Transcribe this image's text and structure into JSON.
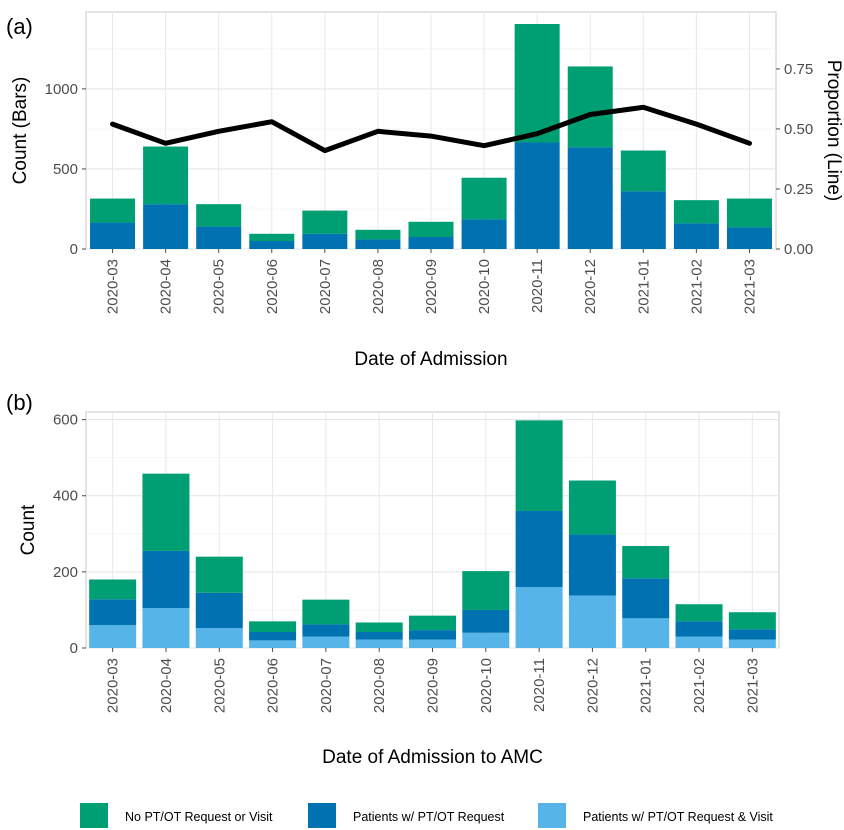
{
  "chart_data": [
    {
      "panel": "(a)",
      "type": "bar",
      "stacked": true,
      "categories": [
        "2020-03",
        "2020-04",
        "2020-05",
        "2020-06",
        "2020-07",
        "2020-08",
        "2020-09",
        "2020-10",
        "2020-11",
        "2020-12",
        "2021-01",
        "2021-02",
        "2021-03"
      ],
      "series": [
        {
          "name": "Patients w/ PT/OT Request",
          "color": "#0072B2",
          "values": [
            165,
            280,
            140,
            50,
            95,
            60,
            75,
            185,
            665,
            635,
            360,
            160,
            135
          ]
        },
        {
          "name": "No PT/OT Request or Visit",
          "color": "#009E73",
          "values": [
            150,
            360,
            140,
            45,
            145,
            60,
            95,
            260,
            740,
            505,
            255,
            145,
            180
          ]
        }
      ],
      "line": {
        "name": "Proportion",
        "color": "#000000",
        "values": [
          0.52,
          0.44,
          0.49,
          0.53,
          0.41,
          0.49,
          0.47,
          0.43,
          0.48,
          0.56,
          0.59,
          0.52,
          0.44
        ]
      },
      "xlabel": "Date of Admission",
      "ylabel": "Count (Bars)",
      "y2label": "Proportion (Line)",
      "ylim": [
        0,
        1480
      ],
      "yticks": [
        0,
        500,
        1000
      ],
      "y2lim": [
        0,
        0.987
      ],
      "y2ticks": [
        "0.00",
        "0.25",
        "0.50",
        "0.75"
      ],
      "grid": true
    },
    {
      "panel": "(b)",
      "type": "bar",
      "stacked": true,
      "categories": [
        "2020-03",
        "2020-04",
        "2020-05",
        "2020-06",
        "2020-07",
        "2020-08",
        "2020-09",
        "2020-10",
        "2020-11",
        "2020-12",
        "2021-01",
        "2021-02",
        "2021-03"
      ],
      "series": [
        {
          "name": "Patients w/ PT/OT Request & Visit",
          "color": "#56B4E9",
          "values": [
            60,
            105,
            52,
            20,
            30,
            22,
            22,
            40,
            160,
            138,
            78,
            30,
            22
          ]
        },
        {
          "name": "Patients w/ PT/OT Request",
          "color": "#0072B2",
          "values": [
            68,
            150,
            93,
            22,
            32,
            20,
            25,
            60,
            200,
            160,
            105,
            40,
            27
          ]
        },
        {
          "name": "No PT/OT Request or Visit",
          "color": "#009E73",
          "values": [
            52,
            203,
            95,
            28,
            65,
            25,
            38,
            102,
            238,
            142,
            85,
            45,
            45
          ]
        }
      ],
      "xlabel": "Date of Admission to AMC",
      "ylabel": "Count",
      "ylim": [
        0,
        620
      ],
      "yticks": [
        0,
        200,
        400,
        600
      ],
      "grid": true
    }
  ],
  "legend": [
    {
      "name": "No PT/OT Request or Visit",
      "color": "#009E73"
    },
    {
      "name": "Patients w/ PT/OT Request",
      "color": "#0072B2"
    },
    {
      "name": "Patients w/ PT/OT Request & Visit",
      "color": "#56B4E9"
    }
  ]
}
